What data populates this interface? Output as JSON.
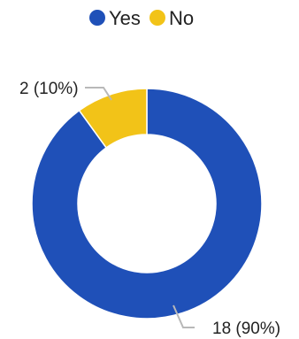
{
  "chart_data": {
    "type": "pie",
    "variant": "donut",
    "legend_position": "top",
    "series": [
      {
        "name": "Yes",
        "value": 18,
        "percent": 90,
        "color": "#1f50b8",
        "label": "18 (90%)"
      },
      {
        "name": "No",
        "value": 2,
        "percent": 10,
        "color": "#f2c318",
        "label": "2 (10%)"
      }
    ]
  }
}
